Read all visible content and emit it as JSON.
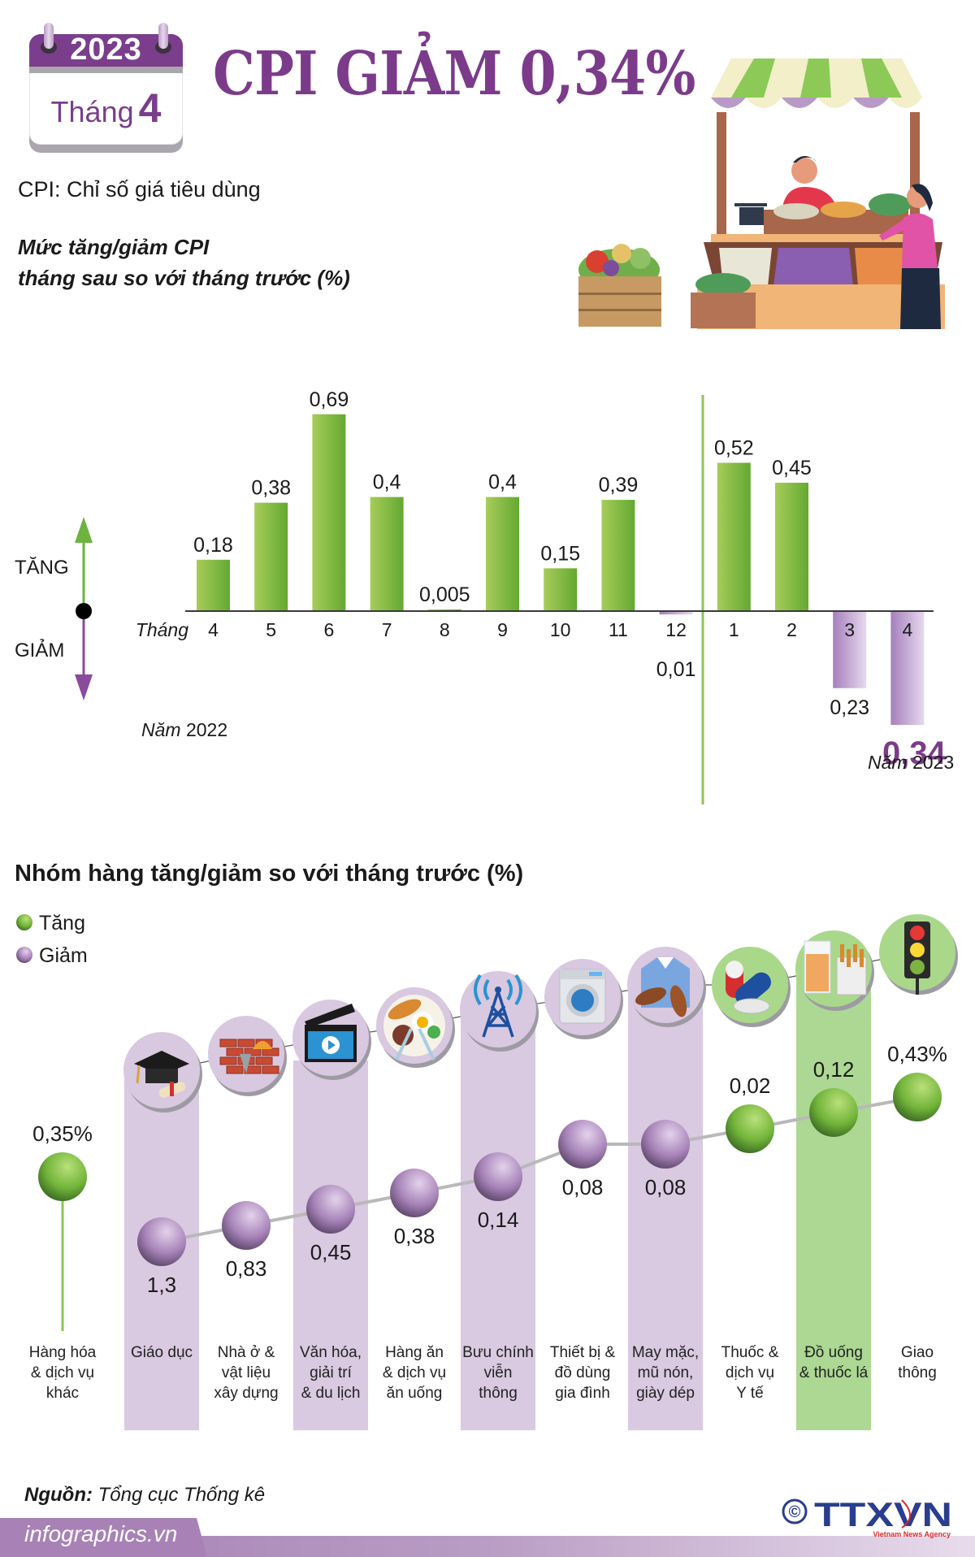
{
  "header": {
    "calendar": {
      "year": "2023",
      "month_label": "Tháng",
      "month_number": "4"
    },
    "title": "CPI GIẢM 0,34%",
    "subtitle": "CPI: Chỉ số giá tiêu dùng",
    "illustration": "market-stall-illustration"
  },
  "colors": {
    "purple_brand": "#7b3b8a",
    "increase_green": "#7db843",
    "decrease_purple": "#b48cc4",
    "stripe_purple": "#d9c9e1",
    "stripe_green": "#acd893"
  },
  "chart_data": [
    {
      "type": "bar",
      "title": "Mức tăng/giảm CPI tháng sau so với tháng trước (%)",
      "title_lines": [
        "Mức tăng/giảm CPI",
        "tháng sau so với tháng trước (%)"
      ],
      "xlabel": "Tháng",
      "ylabel": "",
      "axis_legend": {
        "up": "TĂNG",
        "down": "GIẢM"
      },
      "year_labels": [
        "Năm 2022",
        "Năm 2023"
      ],
      "categories": [
        "4",
        "5",
        "6",
        "7",
        "8",
        "9",
        "10",
        "11",
        "12",
        "1",
        "2",
        "3",
        "4"
      ],
      "years": [
        "2022",
        "2022",
        "2022",
        "2022",
        "2022",
        "2022",
        "2022",
        "2022",
        "2022",
        "2023",
        "2023",
        "2023",
        "2023"
      ],
      "values": [
        0.18,
        0.38,
        0.69,
        0.4,
        0.005,
        0.4,
        0.15,
        0.39,
        -0.01,
        0.52,
        0.45,
        -0.23,
        -0.34
      ],
      "labels": [
        "0,18",
        "0,38",
        "0,69",
        "0,4",
        "0,005",
        "0,4",
        "0,15",
        "0,39",
        "0,01",
        "0,52",
        "0,45",
        "0,23",
        "0,34"
      ],
      "highlight_index": 12,
      "grid": false
    },
    {
      "type": "scatter",
      "title": "Nhóm hàng tăng/giảm so với tháng trước (%)",
      "legend": [
        {
          "label": "Tăng",
          "color": "#7db843"
        },
        {
          "label": "Giảm",
          "color": "#b48cc4"
        }
      ],
      "categories": [
        "Hàng hóa & dịch vụ khác",
        "Giáo dục",
        "Nhà ở & vật liệu xây dựng",
        "Văn hóa, giải trí & du lịch",
        "Hàng ăn & dịch vụ ăn uống",
        "Bưu chính viễn thông",
        "Thiết bị & đồ dùng gia đình",
        "May mặc, mũ nón, giày dép",
        "Thuốc & dịch vụ Y tế",
        "Đồ uống & thuốc lá",
        "Giao thông"
      ],
      "category_lines": [
        [
          "Hàng hóa",
          "& dịch vụ",
          "khác"
        ],
        [
          "Giáo dục"
        ],
        [
          "Nhà ở &",
          "vật liệu",
          "xây dựng"
        ],
        [
          "Văn hóa,",
          "giải trí",
          "& du lịch"
        ],
        [
          "Hàng ăn",
          "& dịch vụ",
          "ăn uống"
        ],
        [
          "Bưu chính",
          "viễn",
          "thông"
        ],
        [
          "Thiết bị &",
          "đồ dùng",
          "gia đình"
        ],
        [
          "May mặc,",
          "mũ nón,",
          "giày dép"
        ],
        [
          "Thuốc &",
          "dịch vụ",
          "Y tế"
        ],
        [
          "Đồ uống",
          "& thuốc lá"
        ],
        [
          "Giao",
          "thông"
        ]
      ],
      "values": [
        0.35,
        -1.3,
        -0.83,
        -0.45,
        -0.38,
        -0.14,
        -0.08,
        -0.08,
        0.02,
        0.12,
        0.43
      ],
      "labels": [
        "0,35%",
        "1,3",
        "0,83",
        "0,45",
        "0,38",
        "0,14",
        "0,08",
        "0,08",
        "0,02",
        "0,12",
        "0,43%"
      ],
      "directions": [
        "up",
        "down",
        "down",
        "down",
        "down",
        "down",
        "down",
        "down",
        "up",
        "up",
        "up"
      ],
      "icons": [
        "none",
        "graduation-cap-icon",
        "bricks-icon",
        "clapperboard-icon",
        "meal-plate-icon",
        "antenna-tower-icon",
        "washing-machine-icon",
        "shirt-shoes-icon",
        "pills-icon",
        "drink-cigarettes-icon",
        "traffic-light-icon"
      ],
      "stripes": [
        "none",
        "purple",
        "none",
        "purple",
        "none",
        "purple",
        "none",
        "purple",
        "none",
        "green",
        "none"
      ]
    }
  ],
  "footer": {
    "source_label": "Nguồn:",
    "source_value": "Tổng cục Thống kê",
    "site": "infographics.vn",
    "copyright_symbol": "©",
    "logo_text": "TTXVN",
    "logo_subtext": "Vietnam News Agency"
  }
}
